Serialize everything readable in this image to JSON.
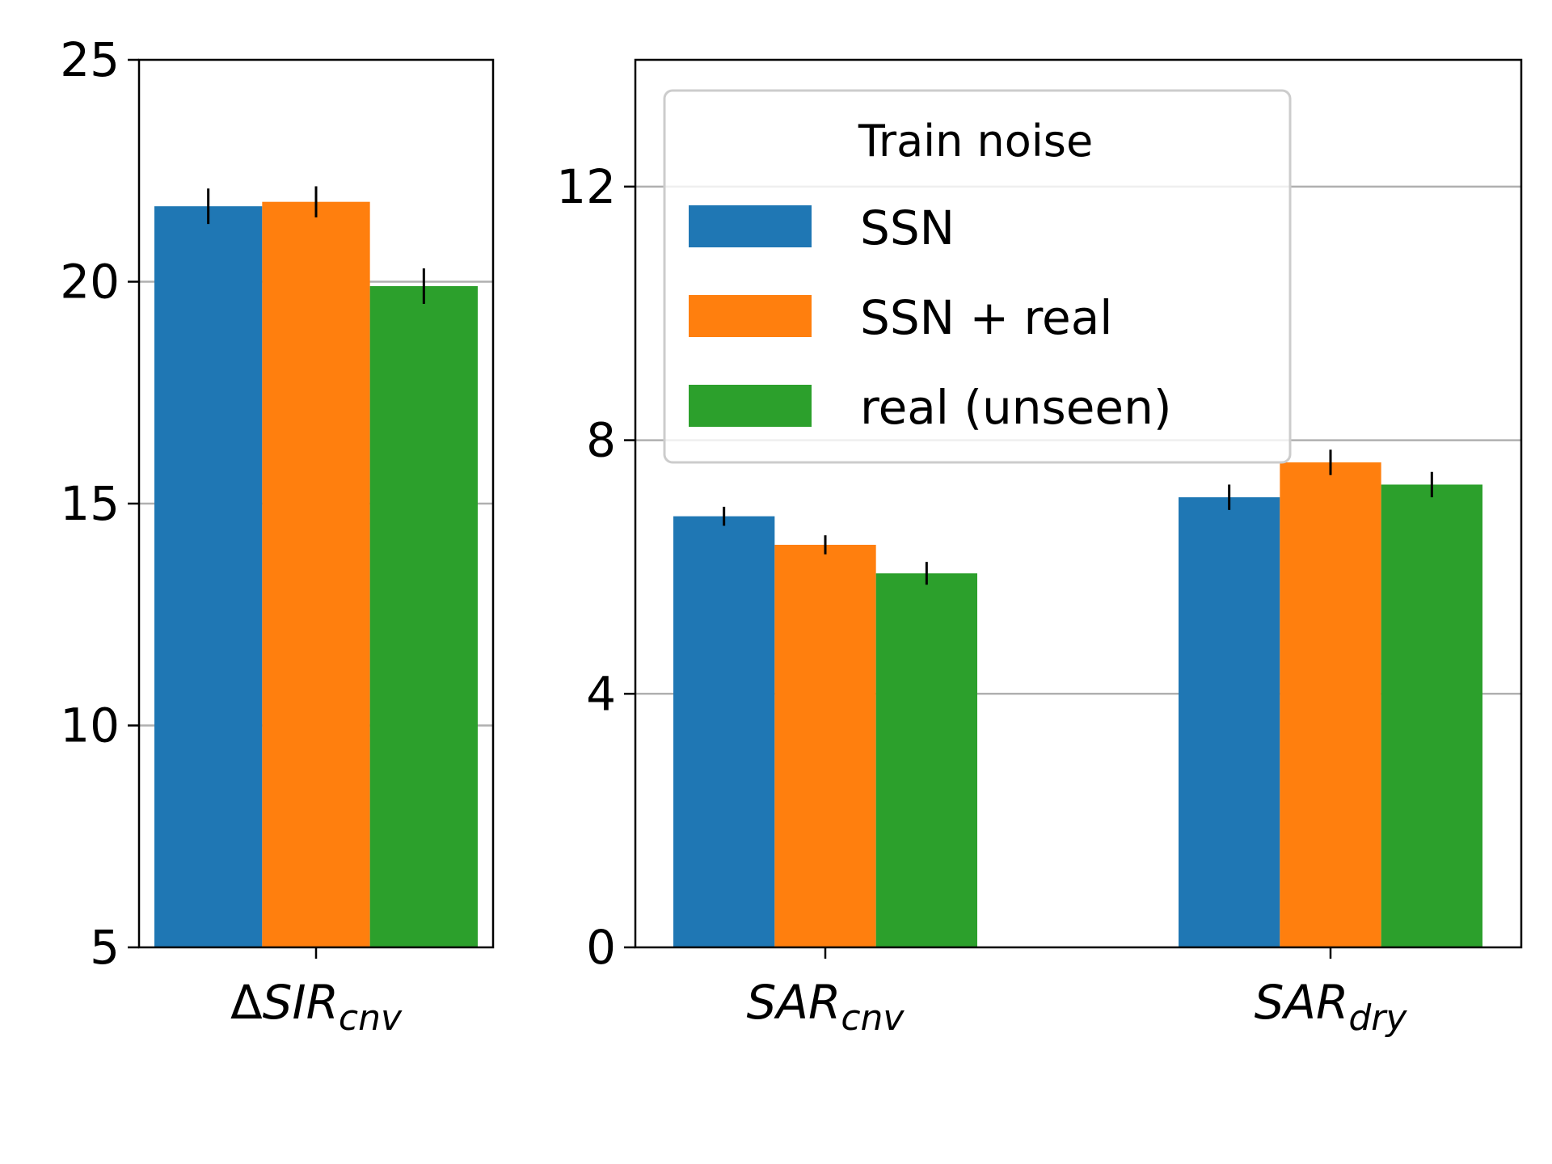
{
  "chart_data": [
    {
      "type": "bar",
      "categories": [
        {
          "id": "dsir-cnv",
          "prefix": "Δ",
          "main": "SIR",
          "sub": "cnv"
        }
      ],
      "series": [
        {
          "name": "SSN",
          "color": "#1f77b4",
          "values": [
            21.7
          ],
          "errors": [
            0.4
          ]
        },
        {
          "name": "SSN + real",
          "color": "#ff7f0e",
          "values": [
            21.8
          ],
          "errors": [
            0.35
          ]
        },
        {
          "name": "real (unseen)",
          "color": "#2ca02c",
          "values": [
            19.9
          ],
          "errors": [
            0.4
          ]
        }
      ],
      "ylim": [
        5,
        25
      ],
      "yticks": [
        "5",
        "10",
        "15",
        "20",
        "25"
      ],
      "grid": "y"
    },
    {
      "type": "bar",
      "categories": [
        {
          "id": "sar-cnv",
          "prefix": "",
          "main": "SAR",
          "sub": "cnv"
        },
        {
          "id": "sar-dry",
          "prefix": "",
          "main": "SAR",
          "sub": "dry"
        }
      ],
      "series": [
        {
          "name": "SSN",
          "color": "#1f77b4",
          "values": [
            6.8,
            7.1
          ],
          "errors": [
            0.15,
            0.2
          ]
        },
        {
          "name": "SSN + real",
          "color": "#ff7f0e",
          "values": [
            6.35,
            7.65
          ],
          "errors": [
            0.15,
            0.2
          ]
        },
        {
          "name": "real (unseen)",
          "color": "#2ca02c",
          "values": [
            5.9,
            7.3
          ],
          "errors": [
            0.18,
            0.2
          ]
        }
      ],
      "ylim": [
        0,
        14
      ],
      "yticks": [
        "0",
        "4",
        "8",
        "12"
      ],
      "grid": "y",
      "legend": {
        "title": "Train noise",
        "position": "upper-left",
        "entries": [
          "SSN",
          "SSN + real",
          "real (unseen)"
        ]
      }
    }
  ]
}
